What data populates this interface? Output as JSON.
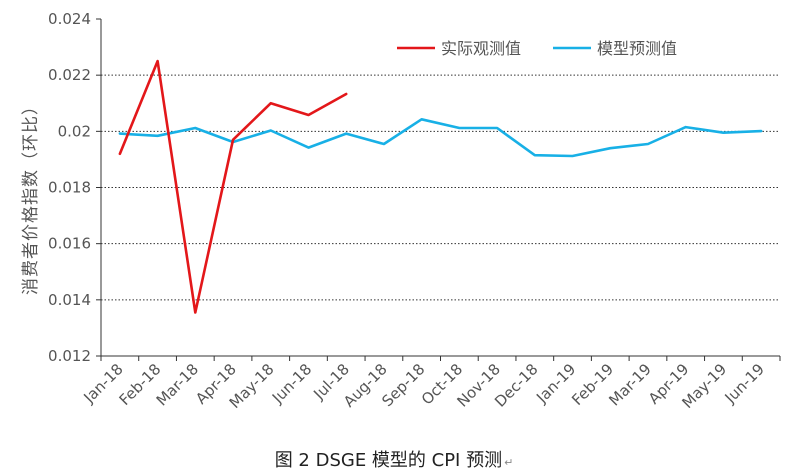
{
  "chart_data": {
    "type": "line",
    "title": "",
    "xlabel": "",
    "ylabel": "消费者价格指数（环比）",
    "ylim": [
      0.012,
      0.024
    ],
    "yticks": [
      "0.024",
      "0.022",
      "0.02",
      "0.018",
      "0.016",
      "0.014",
      "0.012"
    ],
    "grid": "horizontal dotted",
    "legend_position": "top-right",
    "categories": [
      "Jan-18",
      "Feb-18",
      "Mar-18",
      "Apr-18",
      "May-18",
      "Jun-18",
      "Jul-18",
      "Aug-18",
      "Sep-18",
      "Oct-18",
      "Nov-18",
      "Dec-18",
      "Jan-19",
      "Feb-19",
      "Mar-19",
      "Apr-19",
      "May-19",
      "Jun-19"
    ],
    "series": [
      {
        "name": "实际观测值",
        "color": "#e3171a",
        "values": [
          0.0192,
          0.0225,
          0.01355,
          0.0197,
          0.021,
          0.02058,
          0.02133,
          null,
          null,
          null,
          null,
          null,
          null,
          null,
          null,
          null,
          null,
          null
        ]
      },
      {
        "name": "模型预测值",
        "color": "#18b0e6",
        "values": [
          0.01992,
          0.01984,
          0.02012,
          0.01962,
          0.02003,
          0.01942,
          0.01992,
          0.01955,
          0.02043,
          0.02012,
          0.02012,
          0.01915,
          0.01912,
          0.0194,
          0.01955,
          0.02015,
          0.01995,
          0.02001
        ]
      }
    ]
  },
  "caption": {
    "text": "图 2 DSGE 模型的 CPI 预测",
    "mark": "↵"
  }
}
